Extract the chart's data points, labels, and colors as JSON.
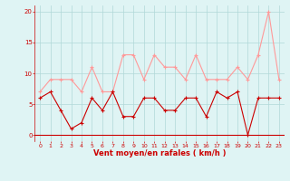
{
  "x": [
    0,
    1,
    2,
    3,
    4,
    5,
    6,
    7,
    8,
    9,
    10,
    11,
    12,
    13,
    14,
    15,
    16,
    17,
    18,
    19,
    20,
    21,
    22,
    23
  ],
  "wind_avg": [
    6,
    7,
    4,
    1,
    2,
    6,
    4,
    7,
    3,
    3,
    6,
    6,
    4,
    4,
    6,
    6,
    3,
    7,
    6,
    7,
    0,
    6,
    6,
    6
  ],
  "wind_gust": [
    7,
    9,
    9,
    9,
    7,
    11,
    7,
    7,
    13,
    13,
    9,
    13,
    11,
    11,
    9,
    13,
    9,
    9,
    9,
    11,
    9,
    13,
    20,
    9
  ],
  "bg_color": "#dff4f4",
  "grid_color": "#b0d8d8",
  "line_avg_color": "#cc0000",
  "line_gust_color": "#ff9999",
  "xlabel": "Vent moyen/en rafales ( km/h )",
  "xlabel_color": "#cc0000",
  "tick_color": "#cc0000",
  "ylim": [
    -1,
    21
  ],
  "yticks": [
    0,
    5,
    10,
    15,
    20
  ],
  "xlim": [
    -0.5,
    23.5
  ]
}
